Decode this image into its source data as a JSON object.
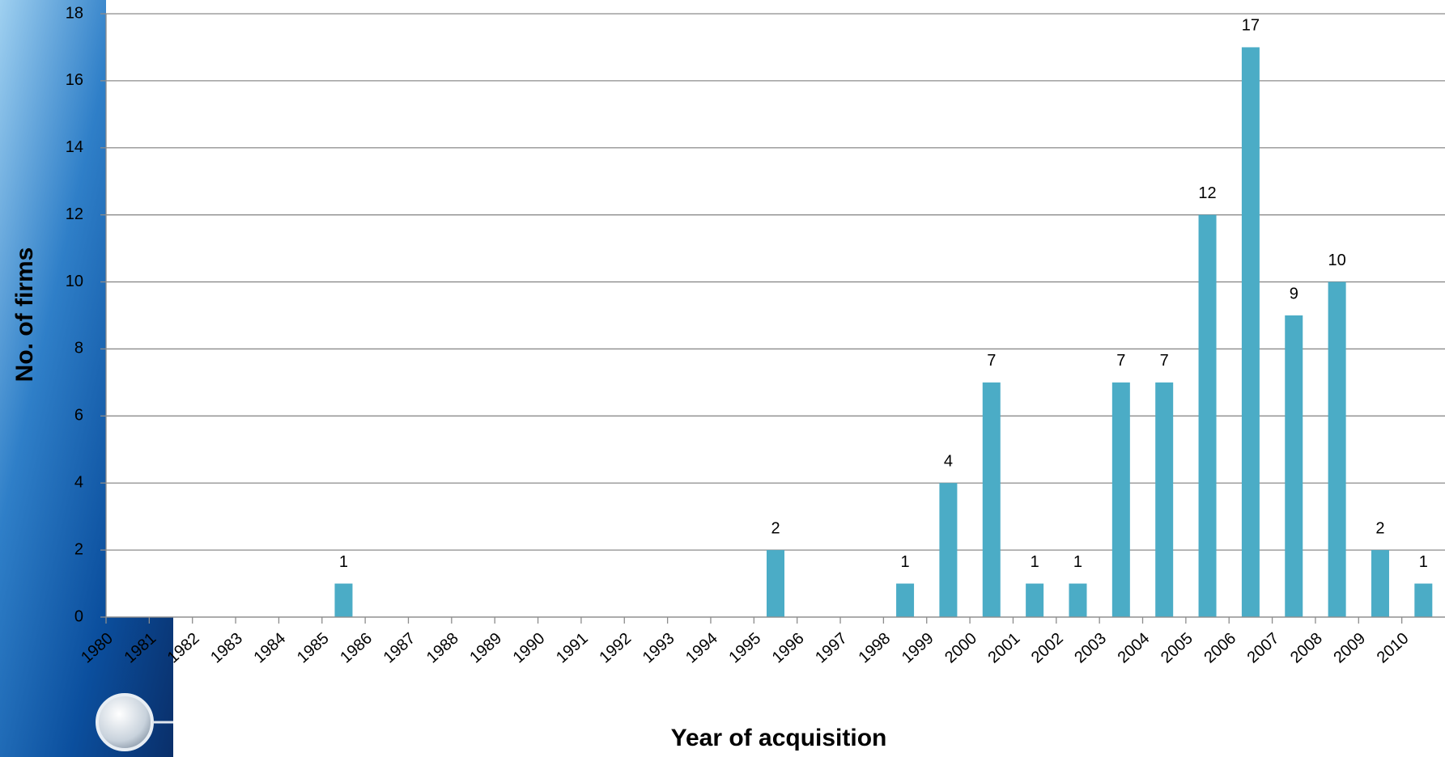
{
  "chart_data": {
    "type": "bar",
    "x_label": "Year of acquisition",
    "y_label": "No. of firms",
    "categories": [
      "1980",
      "1981",
      "1982",
      "1983",
      "1984",
      "1985",
      "1986",
      "1987",
      "1988",
      "1989",
      "1990",
      "1991",
      "1992",
      "1993",
      "1994",
      "1995",
      "1996",
      "1997",
      "1998",
      "1999",
      "2000",
      "2001",
      "2002",
      "2003",
      "2004",
      "2005",
      "2006",
      "2007",
      "2008",
      "2009",
      "2010"
    ],
    "values": [
      0,
      0,
      0,
      0,
      0,
      1,
      0,
      0,
      0,
      0,
      0,
      0,
      0,
      0,
      0,
      2,
      0,
      0,
      1,
      4,
      7,
      1,
      1,
      7,
      7,
      12,
      17,
      9,
      10,
      2,
      1
    ],
    "color": "#4bacc6",
    "ylim": [
      0,
      18
    ],
    "yticks": [
      0,
      2,
      4,
      6,
      8,
      10,
      12,
      14,
      16,
      18
    ],
    "grid": true
  }
}
